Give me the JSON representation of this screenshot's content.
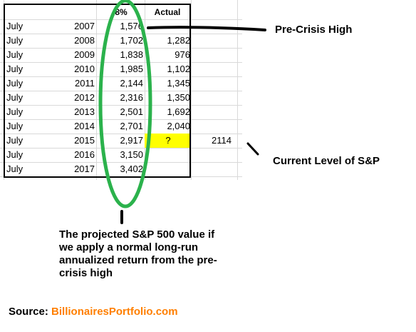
{
  "table": {
    "headers": {
      "projection": "8%",
      "actual": "Actual"
    },
    "rows": [
      {
        "month": "July",
        "year": "2007",
        "projected": "1,576",
        "actual": ""
      },
      {
        "month": "July",
        "year": "2008",
        "projected": "1,702",
        "actual": "1,282"
      },
      {
        "month": "July",
        "year": "2009",
        "projected": "1,838",
        "actual": "976"
      },
      {
        "month": "July",
        "year": "2010",
        "projected": "1,985",
        "actual": "1,102"
      },
      {
        "month": "July",
        "year": "2011",
        "projected": "2,144",
        "actual": "1,345"
      },
      {
        "month": "July",
        "year": "2012",
        "projected": "2,316",
        "actual": "1,350"
      },
      {
        "month": "July",
        "year": "2013",
        "projected": "2,501",
        "actual": "1,692"
      },
      {
        "month": "July",
        "year": "2014",
        "projected": "2,701",
        "actual": "2,040"
      },
      {
        "month": "July",
        "year": "2015",
        "projected": "2,917",
        "actual": "?",
        "current": "2114"
      },
      {
        "month": "July",
        "year": "2016",
        "projected": "3,150",
        "actual": ""
      },
      {
        "month": "July",
        "year": "2017",
        "projected": "3,402",
        "actual": ""
      }
    ]
  },
  "annotations": {
    "pre_crisis_high": "Pre-Crisis High",
    "current_level": "Current Level of S&P",
    "projection_note": "The projected S&P 500 value if we apply a normal long-run annualized return from the pre-crisis high"
  },
  "source": {
    "label": "Source:",
    "name": "BillionairesPortfolio.com"
  },
  "colors": {
    "ellipse": "#2bb24c",
    "highlight": "#ffff00",
    "source_link": "#ff7f00"
  }
}
